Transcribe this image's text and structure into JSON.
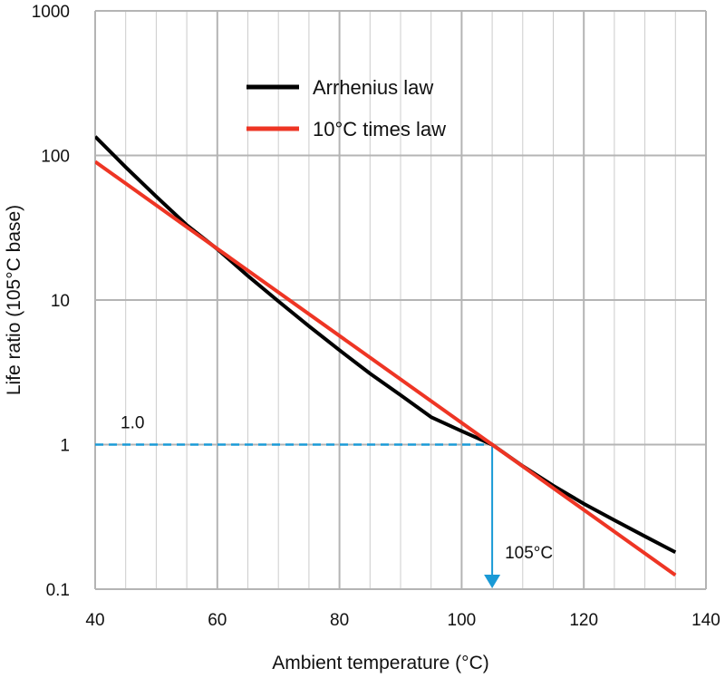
{
  "chart_data": {
    "type": "line",
    "title": "",
    "xlabel": "Ambient temperature (°C)",
    "ylabel": "Life ratio (105°C base)",
    "xlim": [
      40,
      140
    ],
    "ylim": [
      0.1,
      1000
    ],
    "yscale": "log",
    "grid": true,
    "x_ticks": [
      40,
      60,
      80,
      100,
      120,
      140
    ],
    "x_tick_labels": [
      "40",
      "60",
      "80",
      "100",
      "120",
      "140"
    ],
    "y_ticks": [
      0.1,
      1,
      10,
      100,
      1000
    ],
    "y_tick_labels": [
      "0.1",
      "1",
      "10",
      "100",
      "1000"
    ],
    "legend_position": "top-center",
    "series": [
      {
        "name": "Arrhenius law",
        "color": "#000000",
        "x": [
          40,
          45,
          50,
          55,
          60,
          65,
          70,
          75,
          80,
          85,
          90,
          95,
          100,
          105,
          110,
          115,
          120,
          125,
          130,
          135
        ],
        "y": [
          135,
          83,
          52,
          33,
          22.5,
          14.7,
          9.8,
          6.6,
          4.5,
          3.1,
          2.2,
          1.55,
          1.24,
          1.0,
          0.71,
          0.52,
          0.39,
          0.3,
          0.232,
          0.18
        ]
      },
      {
        "name": "10°C times law",
        "color": "#ee3524",
        "x": [
          40,
          135
        ],
        "y": [
          90.5,
          0.125
        ]
      }
    ],
    "annotations": [
      {
        "text": "1.0",
        "x": 45,
        "y": 1.0
      },
      {
        "text": "105°C",
        "x": 105,
        "y": 0.1
      }
    ],
    "reference_point": {
      "x": 105,
      "y": 1.0,
      "color": "#1a9ad6"
    }
  }
}
